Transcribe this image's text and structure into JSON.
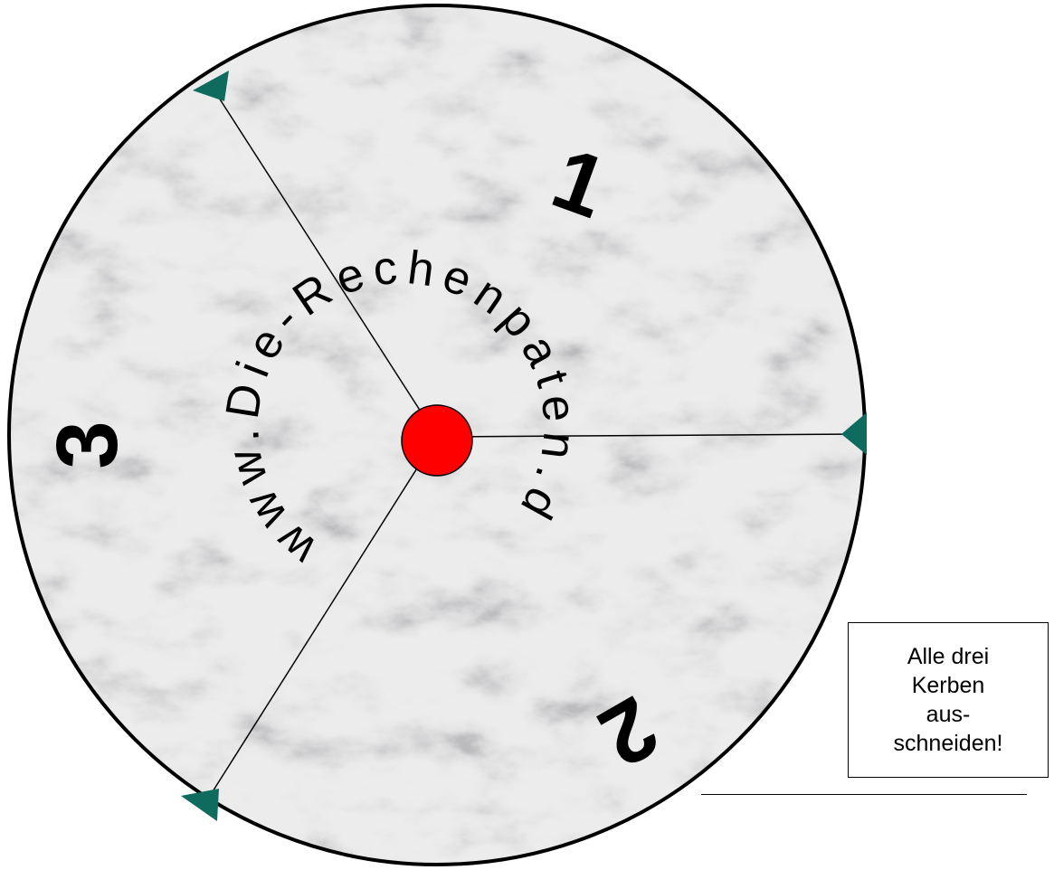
{
  "disc": {
    "sector_numbers": [
      "1",
      "2",
      "3"
    ],
    "circular_text": "www.Die-Rechenpaten.de"
  },
  "note": {
    "lines": [
      "Alle drei",
      "Kerben",
      "aus-",
      "schneiden!"
    ]
  },
  "colors": {
    "center_dot": "#ff0000",
    "notch": "#0e6b5e",
    "rim": "#000000",
    "marble_base": "#e4e4e4"
  },
  "icons": [
    "notch-icon",
    "center-dot-icon"
  ]
}
